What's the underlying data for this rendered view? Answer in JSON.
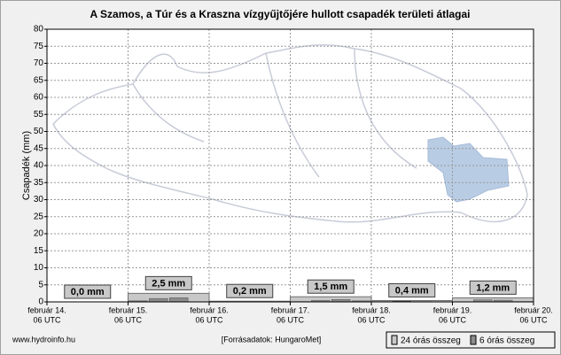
{
  "chart_data": {
    "type": "bar",
    "title": "A Szamos, a Túr és a Kraszna vízgyűjtőjére hullott csapadék területi átlagai",
    "y_label": "Csapadék (mm)",
    "x_tick_labels": [
      [
        "február 14.",
        "06 UTC"
      ],
      [
        "február 15.",
        "06 UTC"
      ],
      [
        "február 16.",
        "06 UTC"
      ],
      [
        "február 17.",
        "06 UTC"
      ],
      [
        "február 18.",
        "06 UTC"
      ],
      [
        "február 19.",
        "06 UTC"
      ],
      [
        "február 20.",
        "06 UTC"
      ]
    ],
    "series": [
      {
        "name": "24 órás összeg",
        "color": "#c8c8c8",
        "values": [
          0.0,
          2.5,
          0.2,
          1.5,
          0.4,
          1.2
        ],
        "value_labels": [
          "0,0 mm",
          "2,5 mm",
          "0,2 mm",
          "1,5 mm",
          "0,4 mm",
          "1,2 mm"
        ]
      },
      {
        "name": "6 órás összeg",
        "color": "#8c8c8c",
        "values": [
          0.0,
          0.0,
          0.0,
          0.0,
          0.3,
          1.0,
          1.2,
          0.0,
          0.0,
          0.1,
          0.1,
          0.0,
          0.1,
          0.4,
          0.7,
          0.3,
          0.1,
          0.2,
          0.1,
          0.0,
          0.0,
          0.6,
          0.5,
          0.1
        ]
      }
    ],
    "ylim": [
      0,
      80
    ],
    "yticks": [
      0,
      5,
      10,
      15,
      20,
      25,
      30,
      35,
      40,
      45,
      50,
      55,
      60,
      65,
      70,
      75,
      80
    ],
    "grid": true,
    "footer_left": "www.hydroinfo.hu",
    "footer_center": "[Forrásadatok: HungaroMet]"
  }
}
